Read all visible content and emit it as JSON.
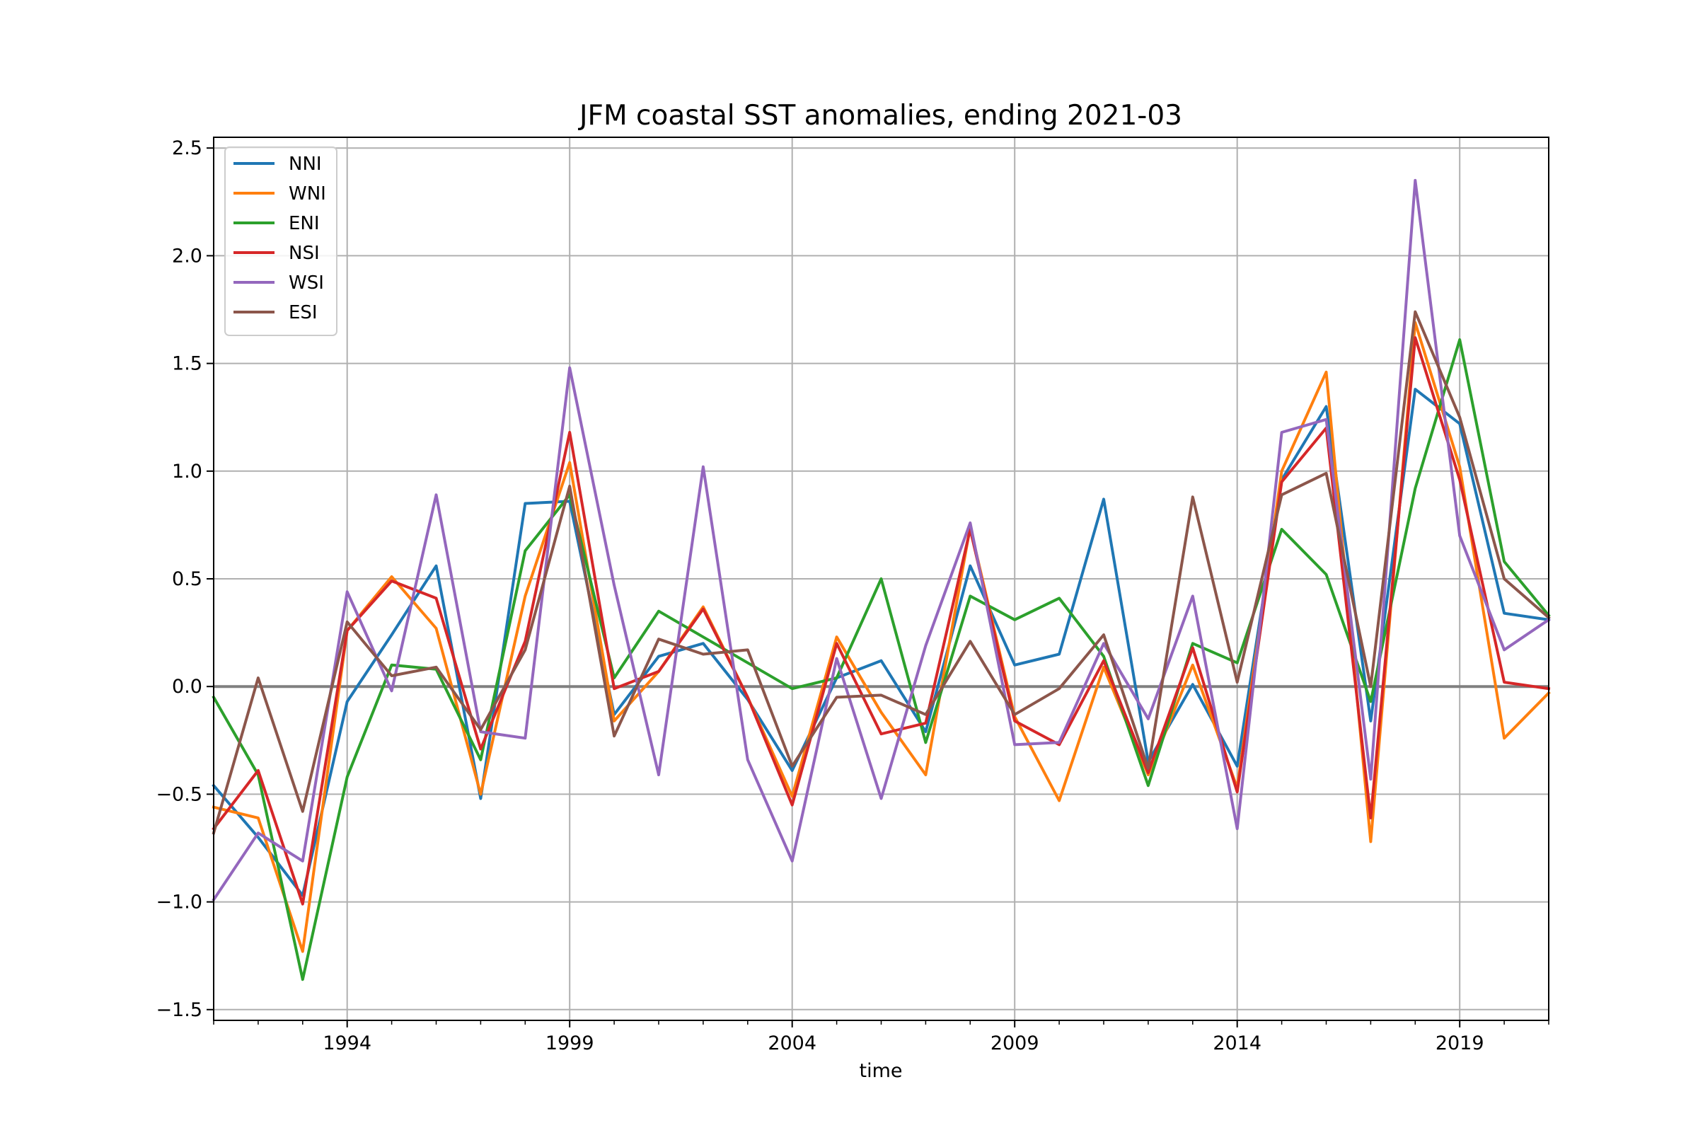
{
  "chart_data": {
    "type": "line",
    "title": "JFM coastal SST anomalies, ending 2021-03",
    "xlabel": "time",
    "ylabel": "",
    "x": [
      1991,
      1992,
      1993,
      1994,
      1995,
      1996,
      1997,
      1998,
      1999,
      2000,
      2001,
      2002,
      2003,
      2004,
      2005,
      2006,
      2007,
      2008,
      2009,
      2010,
      2011,
      2012,
      2013,
      2014,
      2015,
      2016,
      2017,
      2018,
      2019,
      2020,
      2021
    ],
    "xlim": [
      1991,
      2021
    ],
    "ylim": [
      -1.55,
      2.55
    ],
    "x_ticks": [
      1994,
      1999,
      2004,
      2009,
      2014,
      2019
    ],
    "x_tick_labels": [
      "1994",
      "1999",
      "2004",
      "2009",
      "2014",
      "2019"
    ],
    "y_ticks": [
      -1.5,
      -1.0,
      -0.5,
      0.0,
      0.5,
      1.0,
      1.5,
      2.0,
      2.5
    ],
    "y_tick_labels": [
      "−1.5",
      "−1.0",
      "−0.5",
      "0.0",
      "0.5",
      "1.0",
      "1.5",
      "2.0",
      "2.5"
    ],
    "grid": true,
    "legend_position": "top-left",
    "zero_line_color": "#808080",
    "series": [
      {
        "name": "NNI",
        "color": "#1f77b4",
        "values": [
          -0.46,
          -0.7,
          -0.97,
          -0.07,
          0.24,
          0.56,
          -0.52,
          0.85,
          0.86,
          -0.13,
          0.14,
          0.2,
          -0.06,
          -0.39,
          0.04,
          0.12,
          -0.21,
          0.56,
          0.1,
          0.15,
          0.87,
          -0.35,
          0.01,
          -0.37,
          0.96,
          1.3,
          -0.16,
          1.38,
          1.22,
          0.34,
          0.31
        ]
      },
      {
        "name": "WNI",
        "color": "#ff7f0e",
        "values": [
          -0.56,
          -0.61,
          -1.23,
          0.26,
          0.51,
          0.27,
          -0.5,
          0.42,
          1.04,
          -0.16,
          0.07,
          0.37,
          -0.05,
          -0.51,
          0.23,
          -0.12,
          -0.41,
          0.74,
          -0.14,
          -0.53,
          0.09,
          -0.41,
          0.1,
          -0.47,
          1.0,
          1.46,
          -0.72,
          1.69,
          1.02,
          -0.24,
          -0.03
        ]
      },
      {
        "name": "ENI",
        "color": "#2ca02c",
        "values": [
          -0.05,
          -0.41,
          -1.36,
          -0.42,
          0.1,
          0.08,
          -0.34,
          0.63,
          0.89,
          0.04,
          0.35,
          0.23,
          0.11,
          -0.01,
          0.04,
          0.5,
          -0.26,
          0.42,
          0.31,
          0.41,
          0.14,
          -0.46,
          0.2,
          0.11,
          0.73,
          0.52,
          -0.07,
          0.92,
          1.61,
          0.58,
          0.33
        ]
      },
      {
        "name": "NSI",
        "color": "#d62728",
        "values": [
          -0.66,
          -0.39,
          -1.01,
          0.26,
          0.49,
          0.41,
          -0.29,
          0.21,
          1.18,
          -0.01,
          0.07,
          0.36,
          -0.05,
          -0.55,
          0.2,
          -0.22,
          -0.17,
          0.73,
          -0.16,
          -0.27,
          0.12,
          -0.4,
          0.18,
          -0.49,
          0.95,
          1.2,
          -0.61,
          1.62,
          0.96,
          0.02,
          -0.01
        ]
      },
      {
        "name": "WSI",
        "color": "#9467bd",
        "values": [
          -0.99,
          -0.68,
          -0.81,
          0.44,
          -0.02,
          0.89,
          -0.21,
          -0.24,
          1.48,
          0.47,
          -0.41,
          1.02,
          -0.34,
          -0.81,
          0.13,
          -0.52,
          0.19,
          0.76,
          -0.27,
          -0.26,
          0.2,
          -0.15,
          0.42,
          -0.66,
          1.18,
          1.24,
          -0.43,
          2.35,
          0.7,
          0.17,
          0.31
        ]
      },
      {
        "name": "ESI",
        "color": "#8c564b",
        "values": [
          -0.68,
          0.04,
          -0.58,
          0.3,
          0.05,
          0.09,
          -0.2,
          0.17,
          0.93,
          -0.23,
          0.22,
          0.15,
          0.17,
          -0.37,
          -0.05,
          -0.04,
          -0.13,
          0.21,
          -0.13,
          -0.01,
          0.24,
          -0.38,
          0.88,
          0.02,
          0.89,
          0.99,
          0.0,
          1.74,
          1.25,
          0.5,
          0.32
        ]
      }
    ]
  }
}
